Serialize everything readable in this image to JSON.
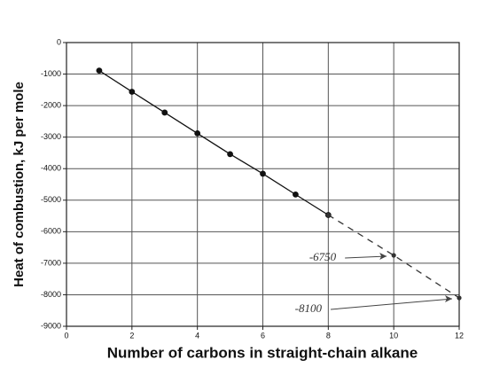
{
  "chart_data": {
    "type": "line",
    "x_label": "Number of carbons in straight-chain alkane",
    "y_label": "Heat of combustion, kJ per mole",
    "series": [
      {
        "color": "#111111",
        "dashed": false,
        "x": [
          1,
          2,
          3,
          4,
          5,
          6,
          7,
          8
        ],
        "values": [
          -890,
          -1560,
          -2220,
          -2880,
          -3540,
          -4160,
          -4820,
          -5470
        ]
      },
      {
        "color": "#333333",
        "dashed": true,
        "x": [
          8,
          10,
          12
        ],
        "values": [
          -5470,
          -6750,
          -8100
        ]
      }
    ],
    "annotations": [
      {
        "text": "-6750",
        "x": 10,
        "y": -6750
      },
      {
        "text": "-8100",
        "x": 12,
        "y": -8100
      }
    ],
    "xlim": [
      0,
      12
    ],
    "xticks": [
      0,
      2,
      4,
      6,
      8,
      10,
      12
    ],
    "ylim": [
      -9000,
      0
    ],
    "yticks": [
      0,
      -1000,
      -2000,
      -3000,
      -4000,
      -5000,
      -6000,
      -7000,
      -8000,
      -9000
    ],
    "grid": true
  }
}
